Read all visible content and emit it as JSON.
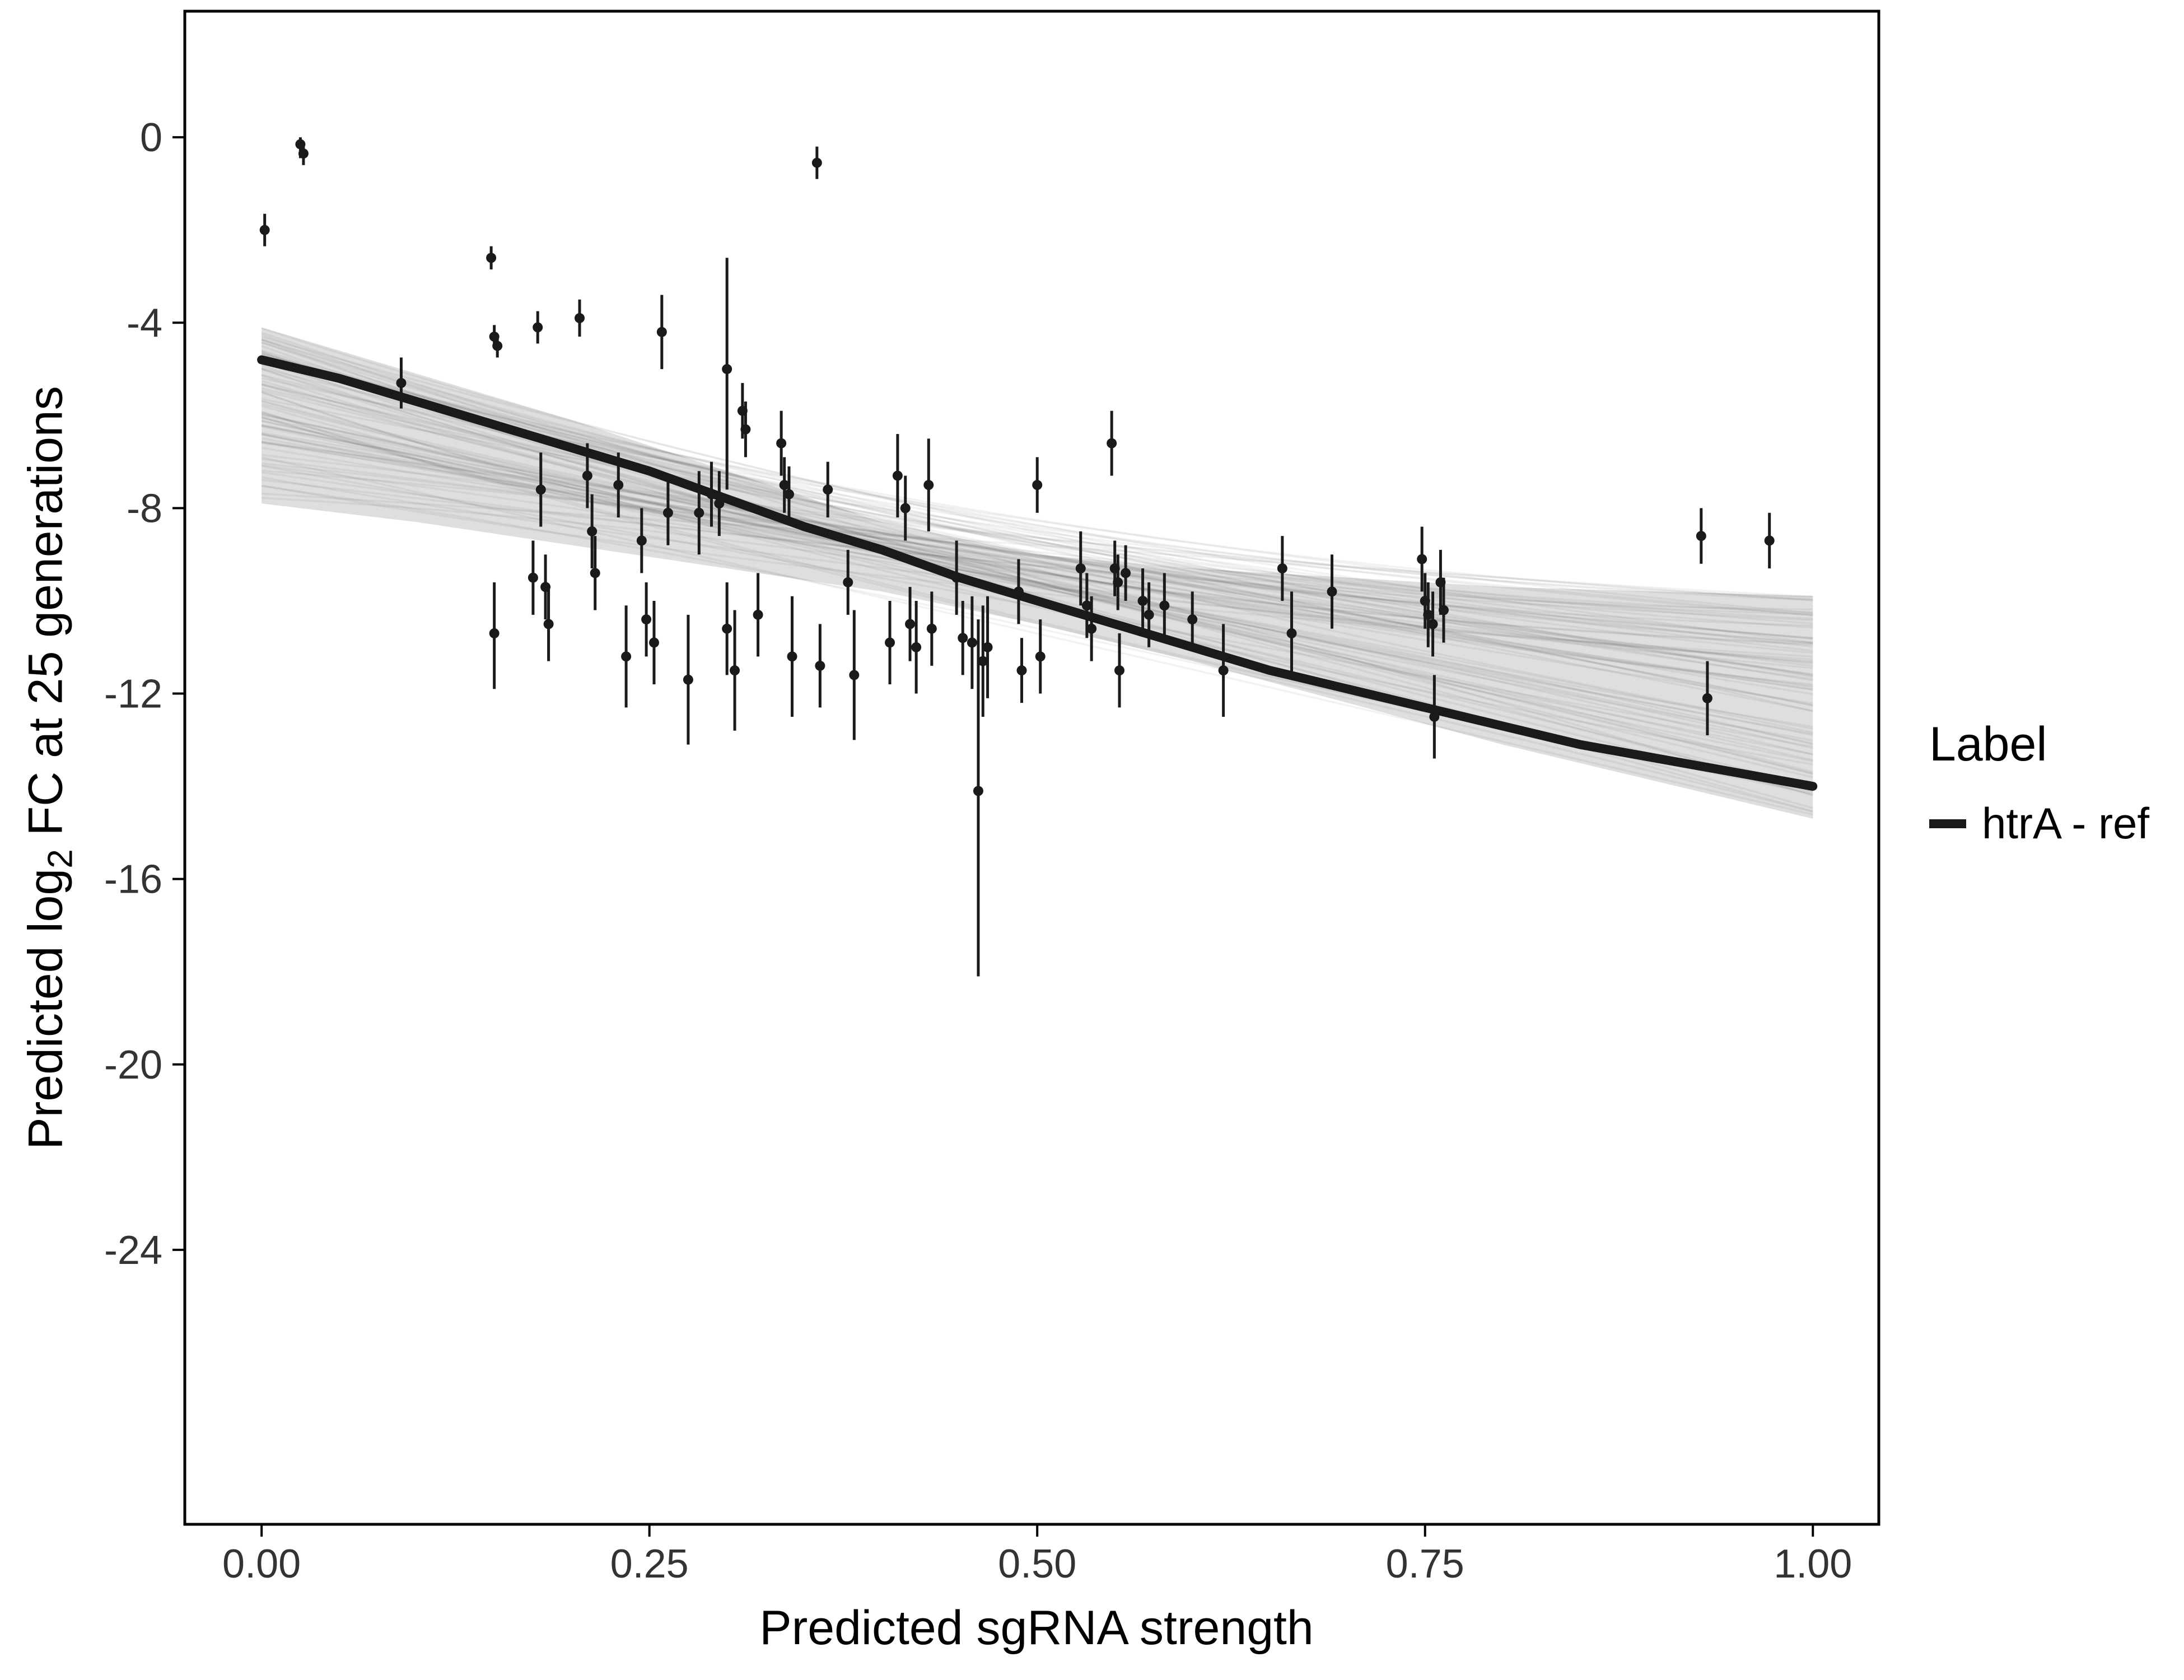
{
  "chart_data": {
    "type": "scatter",
    "title": "",
    "xlabel": "Predicted sgRNA strength",
    "ylabel": {
      "prefix": "Predicted  log",
      "sub": "2",
      "suffix": " FC at 25 generations"
    },
    "legend": {
      "title": "Label",
      "position": "right",
      "entries": [
        {
          "label": "htrA - ref",
          "color": "#1a1a1a"
        }
      ]
    },
    "x_ticks": {
      "values": [
        0,
        0.25,
        0.5,
        0.75,
        1.0
      ],
      "labels": [
        "0.00",
        "0.25",
        "0.50",
        "0.75",
        "1.00"
      ]
    },
    "y_ticks": {
      "values": [
        0,
        -4,
        -8,
        -12,
        -16,
        -20,
        -24
      ],
      "labels": [
        "0",
        "-4",
        "-8",
        "-12",
        "-16",
        "-20",
        "-24"
      ]
    },
    "xlim": [
      -0.0495,
      1.0425
    ],
    "ylim": [
      -29.92,
      2.72
    ],
    "grid": false,
    "colors": {
      "point": "#1a1a1a",
      "curve": "#1a1a1a",
      "band_fill": "#9e9e9e",
      "tick_label": "#333333",
      "axis_title": "#000000",
      "panel_border": "#000000"
    },
    "points": [
      [
        0.002,
        -2.0,
        -2.35,
        -1.65
      ],
      [
        0.025,
        -0.15,
        -0.45,
        0.0
      ],
      [
        0.027,
        -0.35,
        -0.6,
        -0.1
      ],
      [
        0.09,
        -5.3,
        -5.85,
        -4.75
      ],
      [
        0.148,
        -2.6,
        -2.85,
        -2.35
      ],
      [
        0.15,
        -4.3,
        -4.55,
        -4.05
      ],
      [
        0.152,
        -4.5,
        -4.75,
        -4.25
      ],
      [
        0.15,
        -10.7,
        -11.9,
        -9.6
      ],
      [
        0.175,
        -9.5,
        -10.3,
        -8.7
      ],
      [
        0.178,
        -4.1,
        -4.45,
        -3.75
      ],
      [
        0.18,
        -7.6,
        -8.4,
        -6.8
      ],
      [
        0.183,
        -9.7,
        -10.4,
        -9.0
      ],
      [
        0.185,
        -10.5,
        -11.3,
        -9.7
      ],
      [
        0.205,
        -3.9,
        -4.3,
        -3.5
      ],
      [
        0.21,
        -7.3,
        -8.0,
        -6.6
      ],
      [
        0.213,
        -8.5,
        -9.3,
        -7.7
      ],
      [
        0.215,
        -9.4,
        -10.2,
        -8.6
      ],
      [
        0.23,
        -7.5,
        -8.2,
        -6.8
      ],
      [
        0.235,
        -11.2,
        -12.3,
        -10.1
      ],
      [
        0.245,
        -8.7,
        -9.4,
        -8.0
      ],
      [
        0.248,
        -10.4,
        -11.2,
        -9.6
      ],
      [
        0.253,
        -10.9,
        -11.8,
        -10.0
      ],
      [
        0.258,
        -4.2,
        -5.0,
        -3.4
      ],
      [
        0.262,
        -8.1,
        -8.8,
        -7.4
      ],
      [
        0.275,
        -11.7,
        -13.1,
        -10.3
      ],
      [
        0.282,
        -8.1,
        -9.0,
        -7.2
      ],
      [
        0.29,
        -7.7,
        -8.4,
        -7.0
      ],
      [
        0.295,
        -7.9,
        -8.6,
        -7.2
      ],
      [
        0.3,
        -5.0,
        -7.6,
        -2.6
      ],
      [
        0.3,
        -10.6,
        -11.6,
        -9.6
      ],
      [
        0.305,
        -11.5,
        -12.8,
        -10.2
      ],
      [
        0.31,
        -5.9,
        -6.5,
        -5.3
      ],
      [
        0.312,
        -6.3,
        -6.9,
        -5.7
      ],
      [
        0.32,
        -10.3,
        -11.2,
        -9.4
      ],
      [
        0.335,
        -6.6,
        -7.3,
        -5.9
      ],
      [
        0.337,
        -7.5,
        -8.1,
        -6.9
      ],
      [
        0.34,
        -7.7,
        -8.3,
        -7.1
      ],
      [
        0.342,
        -11.2,
        -12.5,
        -9.9
      ],
      [
        0.358,
        -0.55,
        -0.9,
        -0.2
      ],
      [
        0.36,
        -11.4,
        -12.3,
        -10.5
      ],
      [
        0.365,
        -7.6,
        -8.2,
        -7.0
      ],
      [
        0.378,
        -9.6,
        -10.3,
        -8.9
      ],
      [
        0.382,
        -11.6,
        -13.0,
        -10.2
      ],
      [
        0.405,
        -10.9,
        -11.8,
        -10.0
      ],
      [
        0.41,
        -7.3,
        -8.2,
        -6.4
      ],
      [
        0.415,
        -8.0,
        -8.7,
        -7.3
      ],
      [
        0.418,
        -10.5,
        -11.3,
        -9.7
      ],
      [
        0.422,
        -11.0,
        -12.0,
        -10.0
      ],
      [
        0.43,
        -7.5,
        -8.5,
        -6.5
      ],
      [
        0.432,
        -10.6,
        -11.4,
        -9.8
      ],
      [
        0.448,
        -9.5,
        -10.3,
        -8.7
      ],
      [
        0.452,
        -10.8,
        -11.6,
        -10.0
      ],
      [
        0.458,
        -10.9,
        -11.9,
        -9.9
      ],
      [
        0.462,
        -14.1,
        -18.1,
        -10.4
      ],
      [
        0.465,
        -11.3,
        -12.5,
        -10.1
      ],
      [
        0.468,
        -11.0,
        -12.1,
        -9.9
      ],
      [
        0.488,
        -9.8,
        -10.5,
        -9.1
      ],
      [
        0.49,
        -11.5,
        -12.2,
        -10.8
      ],
      [
        0.5,
        -7.5,
        -8.1,
        -6.9
      ],
      [
        0.502,
        -11.2,
        -12.0,
        -10.4
      ],
      [
        0.528,
        -9.3,
        -10.1,
        -8.5
      ],
      [
        0.532,
        -10.1,
        -10.8,
        -9.4
      ],
      [
        0.535,
        -10.6,
        -11.3,
        -9.9
      ],
      [
        0.548,
        -6.6,
        -7.3,
        -5.9
      ],
      [
        0.55,
        -9.3,
        -9.9,
        -8.7
      ],
      [
        0.552,
        -9.6,
        -10.2,
        -9.0
      ],
      [
        0.553,
        -11.5,
        -12.3,
        -10.7
      ],
      [
        0.557,
        -9.4,
        -10.0,
        -8.8
      ],
      [
        0.568,
        -10.0,
        -10.7,
        -9.3
      ],
      [
        0.572,
        -10.3,
        -11.0,
        -9.6
      ],
      [
        0.582,
        -10.1,
        -10.8,
        -9.4
      ],
      [
        0.6,
        -10.4,
        -11.0,
        -9.8
      ],
      [
        0.62,
        -11.5,
        -12.5,
        -10.5
      ],
      [
        0.658,
        -9.3,
        -10.0,
        -8.6
      ],
      [
        0.664,
        -10.7,
        -11.6,
        -9.8
      ],
      [
        0.69,
        -9.8,
        -10.6,
        -9.0
      ],
      [
        0.748,
        -9.1,
        -9.8,
        -8.4
      ],
      [
        0.75,
        -10.0,
        -10.6,
        -9.4
      ],
      [
        0.752,
        -10.3,
        -11.0,
        -9.6
      ],
      [
        0.755,
        -10.5,
        -11.2,
        -9.8
      ],
      [
        0.756,
        -12.5,
        -13.4,
        -11.6
      ],
      [
        0.76,
        -9.6,
        -10.3,
        -8.9
      ],
      [
        0.762,
        -10.2,
        -10.9,
        -9.5
      ],
      [
        0.928,
        -8.6,
        -9.2,
        -8.0
      ],
      [
        0.932,
        -12.1,
        -12.9,
        -11.3
      ],
      [
        0.972,
        -8.7,
        -9.3,
        -8.1
      ]
    ],
    "fit_curve": {
      "name": "htrA - ref",
      "x": [
        0,
        0.05,
        0.1,
        0.15,
        0.2,
        0.25,
        0.3,
        0.35,
        0.4,
        0.45,
        0.5,
        0.55,
        0.6,
        0.65,
        0.7,
        0.75,
        0.8,
        0.85,
        0.9,
        0.95,
        1.0
      ],
      "y": [
        -4.8,
        -5.2,
        -5.7,
        -6.2,
        -6.7,
        -7.2,
        -7.8,
        -8.4,
        -8.9,
        -9.5,
        -10.0,
        -10.5,
        -11.0,
        -11.5,
        -11.9,
        -12.3,
        -12.7,
        -13.1,
        -13.4,
        -13.7,
        -14.0
      ]
    },
    "band": {
      "x": [
        0,
        0.1,
        0.2,
        0.3,
        0.4,
        0.5,
        0.6,
        0.7,
        0.8,
        0.9,
        1.0
      ],
      "upper": [
        -4.1,
        -5.1,
        -6.1,
        -7.2,
        -8.3,
        -9.0,
        -9.3,
        -9.5,
        -9.7,
        -9.8,
        -9.9
      ],
      "lower": [
        -7.9,
        -8.3,
        -8.8,
        -9.3,
        -9.8,
        -10.5,
        -11.3,
        -12.2,
        -13.1,
        -13.9,
        -14.7
      ],
      "spaghetti": {
        "n": 80,
        "alpha": 0.05,
        "seed": 12,
        "pinch_x": 0.45,
        "pinch_y": -9.3
      }
    }
  }
}
